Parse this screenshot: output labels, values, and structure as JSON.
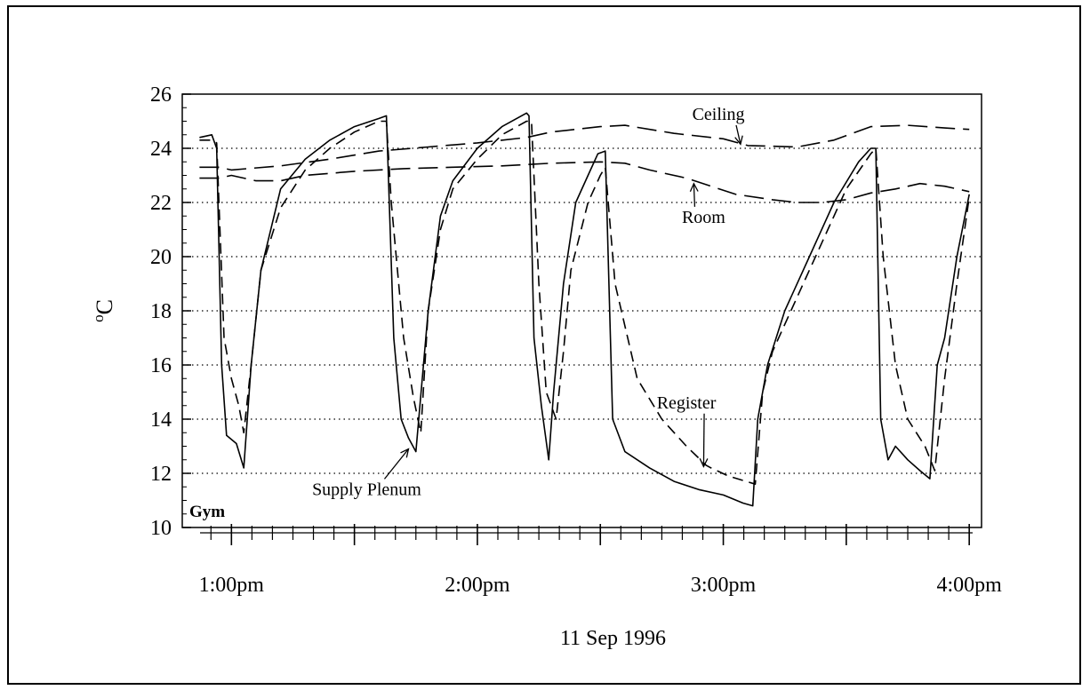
{
  "chart_data": {
    "type": "line",
    "title": "",
    "xlabel": "11 Sep 1996",
    "ylabel": "°C",
    "ylabel_sup": "o",
    "ylabel_unit": "C",
    "panel_label": "Gym",
    "xlim": [
      12.8,
      16.05
    ],
    "ylim": [
      10,
      26
    ],
    "yticks": [
      10,
      12,
      14,
      16,
      18,
      20,
      22,
      24,
      26
    ],
    "xticks": [
      {
        "x": 13.0,
        "label": "1:00pm"
      },
      {
        "x": 14.0,
        "label": "2:00pm"
      },
      {
        "x": 15.0,
        "label": "3:00pm"
      },
      {
        "x": 16.0,
        "label": "4:00pm"
      }
    ],
    "grid": {
      "horizontal": true,
      "style": "dotted",
      "at": [
        12,
        14,
        16,
        18,
        20,
        22,
        24
      ]
    },
    "legend": "inline annotations",
    "annotations": [
      {
        "text": "Ceiling",
        "x": 14.98,
        "y": 25.05,
        "arrow_to": [
          15.07,
          24.15
        ]
      },
      {
        "text": "Room",
        "x": 14.92,
        "y": 21.25,
        "arrow_to": [
          14.88,
          22.7
        ]
      },
      {
        "text": "Register",
        "x": 14.85,
        "y": 14.4,
        "arrow_to": [
          14.92,
          12.25
        ]
      },
      {
        "text": "Supply Plenum",
        "x": 13.55,
        "y": 11.2,
        "arrow_to": [
          13.72,
          12.9
        ]
      }
    ],
    "series": [
      {
        "name": "Ceiling",
        "dash": "long",
        "x": [
          12.87,
          12.95,
          13.0,
          13.2,
          13.4,
          13.6,
          13.8,
          14.0,
          14.2,
          14.3,
          14.5,
          14.6,
          14.8,
          15.0,
          15.1,
          15.3,
          15.45,
          15.6,
          15.75,
          15.9,
          16.0
        ],
        "y": [
          23.3,
          23.3,
          23.2,
          23.35,
          23.6,
          23.9,
          24.05,
          24.2,
          24.4,
          24.6,
          24.8,
          24.85,
          24.55,
          24.35,
          24.1,
          24.05,
          24.3,
          24.8,
          24.85,
          24.75,
          24.7
        ]
      },
      {
        "name": "Room",
        "dash": "long",
        "x": [
          12.87,
          12.95,
          13.0,
          13.1,
          13.2,
          13.3,
          13.5,
          13.7,
          13.9,
          14.1,
          14.3,
          14.5,
          14.6,
          14.7,
          14.85,
          14.95,
          15.05,
          15.2,
          15.3,
          15.4,
          15.5,
          15.6,
          15.7,
          15.8,
          15.9,
          16.0
        ],
        "y": [
          22.9,
          22.9,
          23.0,
          22.8,
          22.8,
          23.0,
          23.15,
          23.25,
          23.3,
          23.35,
          23.45,
          23.5,
          23.45,
          23.2,
          22.9,
          22.6,
          22.3,
          22.1,
          22.0,
          22.0,
          22.1,
          22.35,
          22.5,
          22.7,
          22.6,
          22.4
        ]
      },
      {
        "name": "Register",
        "dash": "medium",
        "x": [
          12.87,
          12.92,
          12.94,
          12.97,
          13.0,
          13.03,
          13.05,
          13.08,
          13.12,
          13.2,
          13.3,
          13.4,
          13.5,
          13.6,
          13.63,
          13.65,
          13.7,
          13.74,
          13.77,
          13.8,
          13.85,
          13.9,
          14.0,
          14.1,
          14.2,
          14.22,
          14.25,
          14.28,
          14.32,
          14.35,
          14.38,
          14.45,
          14.5,
          14.52,
          14.56,
          14.65,
          14.75,
          14.85,
          14.93,
          14.95,
          15.02,
          15.13,
          15.16,
          15.2,
          15.3,
          15.4,
          15.5,
          15.6,
          15.62,
          15.65,
          15.7,
          15.75,
          15.82,
          15.86,
          15.9,
          15.95,
          16.0
        ],
        "y": [
          24.3,
          24.3,
          24.2,
          17.0,
          15.5,
          14.5,
          13.5,
          16.0,
          19.5,
          21.8,
          23.2,
          24.0,
          24.6,
          25.0,
          25.0,
          22.0,
          17.0,
          14.8,
          13.5,
          18.0,
          21.0,
          22.5,
          23.6,
          24.5,
          25.0,
          25.0,
          19.0,
          15.0,
          14.0,
          16.5,
          19.5,
          22.0,
          23.0,
          23.3,
          19.0,
          15.5,
          14.0,
          13.0,
          12.3,
          12.2,
          11.9,
          11.6,
          15.0,
          16.5,
          18.5,
          20.5,
          22.5,
          23.8,
          24.0,
          20.0,
          16.0,
          14.0,
          13.0,
          12.1,
          15.5,
          19.0,
          22.2
        ]
      },
      {
        "name": "Supply Plenum",
        "dash": "solid",
        "x": [
          12.87,
          12.92,
          12.94,
          12.96,
          12.98,
          13.02,
          13.05,
          13.08,
          13.12,
          13.2,
          13.3,
          13.4,
          13.5,
          13.6,
          13.63,
          13.66,
          13.69,
          13.72,
          13.75,
          13.8,
          13.85,
          13.9,
          14.0,
          14.1,
          14.2,
          14.21,
          14.23,
          14.26,
          14.29,
          14.31,
          14.35,
          14.4,
          14.45,
          14.49,
          14.52,
          14.55,
          14.6,
          14.7,
          14.8,
          14.9,
          15.0,
          15.08,
          15.12,
          15.14,
          15.18,
          15.25,
          15.35,
          15.45,
          15.55,
          15.6,
          15.62,
          15.64,
          15.67,
          15.7,
          15.75,
          15.8,
          15.84,
          15.87,
          15.9,
          15.95,
          16.0
        ],
        "y": [
          24.4,
          24.5,
          24.0,
          16.0,
          13.4,
          13.1,
          12.2,
          16.0,
          19.5,
          22.5,
          23.6,
          24.3,
          24.8,
          25.1,
          25.2,
          17.0,
          14.0,
          13.3,
          12.8,
          18.0,
          21.5,
          22.8,
          24.0,
          24.8,
          25.3,
          25.2,
          17.0,
          14.5,
          12.5,
          15.0,
          19.0,
          22.0,
          23.0,
          23.8,
          23.9,
          14.0,
          12.8,
          12.2,
          11.7,
          11.4,
          11.2,
          10.9,
          10.8,
          14.0,
          16.0,
          18.0,
          20.0,
          22.0,
          23.5,
          24.0,
          24.0,
          14.0,
          12.5,
          13.0,
          12.5,
          12.1,
          11.8,
          16.0,
          17.0,
          20.0,
          22.3
        ]
      }
    ]
  }
}
